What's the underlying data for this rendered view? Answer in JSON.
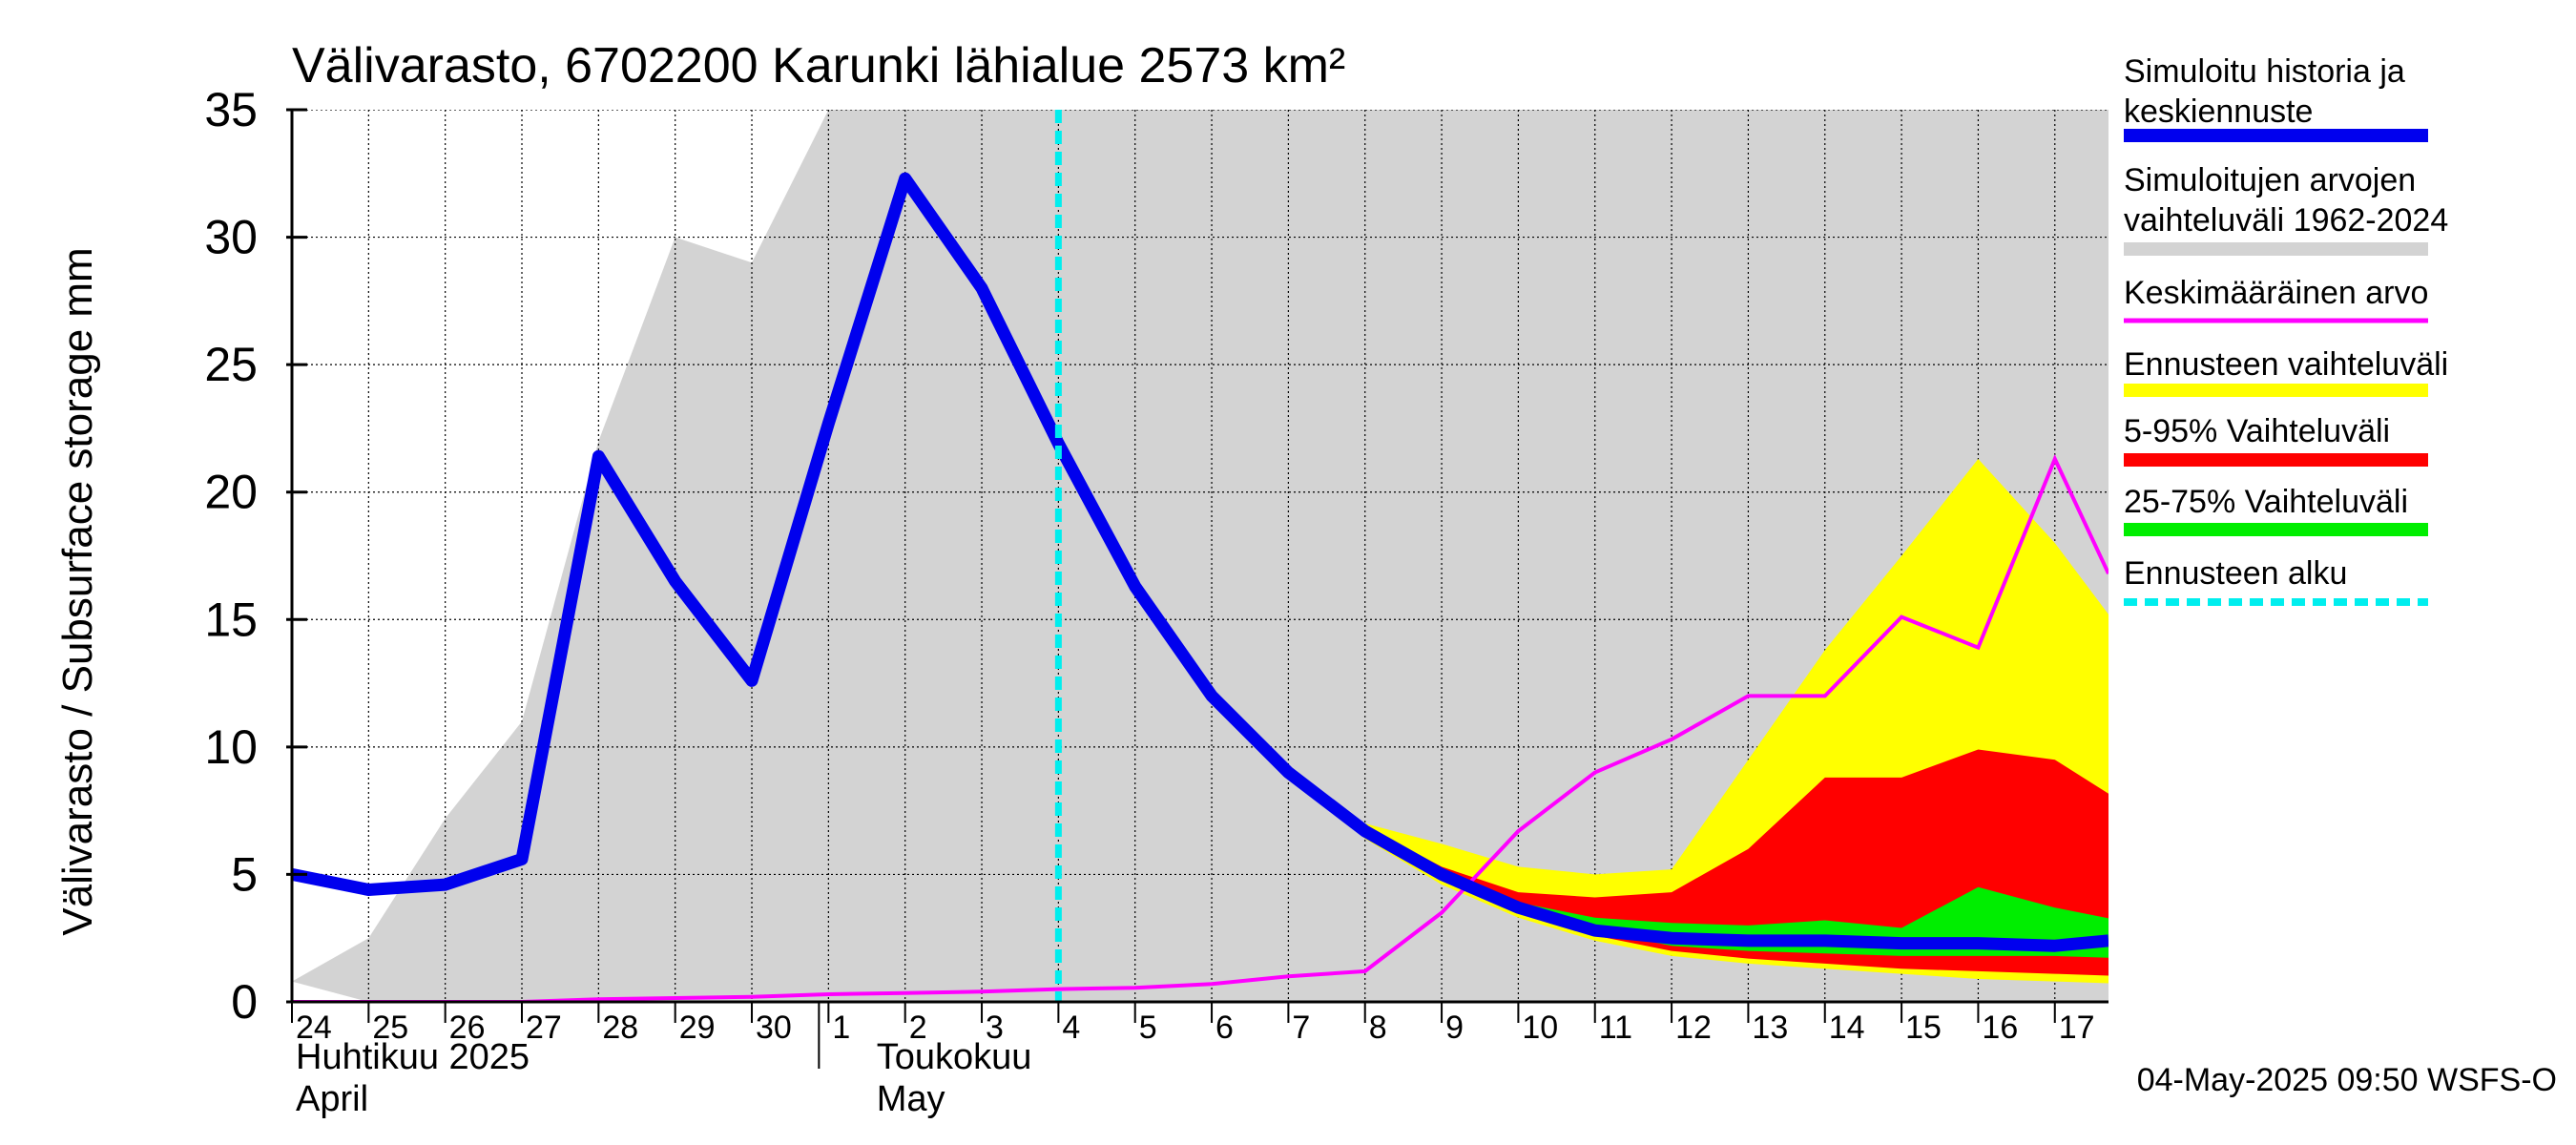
{
  "title": "Välivarasto, 6702200 Karunki lähialue 2573 km²",
  "timestamp": "04-May-2025 09:50 WSFS-O",
  "colors": {
    "history": "#0000ee",
    "range": "#d3d3d3",
    "mean": "#ff00ff",
    "forecast_range": "#ffff00",
    "p5_95": "#ff0000",
    "p25_75": "#00ee00",
    "forecast_start": "#00eeee"
  },
  "chart_data": {
    "type": "area",
    "title": "Välivarasto, 6702200 Karunki lähialue 2573 km²",
    "ylabel": "Välivarasto / Subsurface storage  mm",
    "ylim": [
      0,
      35
    ],
    "yticks": [
      0,
      5,
      10,
      15,
      20,
      25,
      30,
      35
    ],
    "xlim": [
      "2025-04-24",
      "2025-05-17T16:00"
    ],
    "grid": true,
    "legend_position": "right",
    "x_tick_labels": [
      "24",
      "25",
      "26",
      "27",
      "28",
      "29",
      "30",
      "1",
      "2",
      "3",
      "4",
      "5",
      "6",
      "7",
      "8",
      "9",
      "10",
      "11",
      "12",
      "13",
      "14",
      "15",
      "16",
      "17"
    ],
    "month_labels": [
      {
        "line1": "Huhtikuu  2025",
        "line2": "April"
      },
      {
        "line1": "Toukokuu",
        "line2": "May"
      }
    ],
    "forecast_start": "2025-05-04",
    "legend": [
      "Simuloitu historia ja keskiennuste",
      "Simuloitujen arvojen vaihteluväli 1962-2024",
      "Keskimääräinen arvo",
      "Ennusteen vaihteluväli",
      "5-95% Vaihteluväli",
      "25-75% Vaihteluväli",
      "Ennusteen alku"
    ],
    "x_days": [
      0,
      1,
      2,
      3,
      4,
      5,
      6,
      7,
      8,
      9,
      10,
      11,
      12,
      13,
      14,
      15,
      16,
      17,
      18,
      19,
      20,
      21,
      22,
      23,
      23.7
    ],
    "series": [
      {
        "name": "Simuloitu historia ja keskiennuste",
        "values": [
          5.0,
          4.4,
          4.6,
          5.6,
          21.4,
          16.5,
          12.6,
          22.7,
          32.3,
          28.0,
          21.9,
          16.3,
          12.0,
          9.0,
          6.7,
          5.0,
          3.7,
          2.8,
          2.5,
          2.4,
          2.4,
          2.3,
          2.3,
          2.2,
          2.4
        ]
      },
      {
        "name": "Keskimääräinen arvo",
        "values": [
          0.0,
          0.0,
          0.0,
          0.0,
          0.1,
          0.15,
          0.2,
          0.3,
          0.35,
          0.4,
          0.5,
          0.55,
          0.7,
          1.0,
          1.2,
          3.5,
          6.7,
          9.0,
          10.3,
          12.0,
          12.0,
          15.1,
          13.9,
          21.3,
          16.8
        ]
      },
      {
        "name": "Simuloitujen arvojen vaihteluväli 1962-2024",
        "lower": [
          0.8,
          0.0,
          0.0,
          0.0,
          0.0,
          0.0,
          0.0,
          0.0,
          0.0,
          0.0,
          0.0,
          0.0,
          0.0,
          0.0,
          0.0,
          0.0,
          0.0,
          0.0,
          0.0,
          0.0,
          0.0,
          0.0,
          0.0,
          0.0,
          0.0
        ],
        "upper": [
          0.8,
          2.5,
          7.2,
          11.0,
          22.0,
          30.0,
          29.0,
          35.0,
          35.0,
          35.0,
          35.0,
          35.0,
          35.0,
          35.0,
          35.0,
          35.0,
          35.0,
          35.0,
          35.0,
          35.0,
          35.0,
          35.0,
          35.0,
          35.0,
          35.0
        ]
      },
      {
        "name": "Ennusteen vaihteluväli",
        "x_start": 10,
        "lower": [
          21.9,
          16.3,
          12.0,
          8.9,
          6.4,
          4.6,
          3.3,
          2.4,
          1.8,
          1.5,
          1.3,
          1.1,
          0.9,
          0.8,
          0.7
        ],
        "upper": [
          21.9,
          16.3,
          12.0,
          9.1,
          7.0,
          6.2,
          5.3,
          5.0,
          5.2,
          9.5,
          13.8,
          17.5,
          21.3,
          18.0,
          14.0
        ]
      },
      {
        "name": "5-95% Vaihteluväli",
        "x_start": 10,
        "lower": [
          21.9,
          16.3,
          12.0,
          8.9,
          6.5,
          4.8,
          3.5,
          2.6,
          2.0,
          1.7,
          1.5,
          1.3,
          1.2,
          1.1,
          1.0
        ],
        "upper": [
          21.9,
          16.3,
          12.0,
          9.0,
          6.9,
          5.3,
          4.3,
          4.1,
          4.3,
          6.0,
          8.8,
          8.8,
          9.9,
          9.5,
          7.6
        ]
      },
      {
        "name": "25-75% Vaihteluväli",
        "x_start": 10,
        "lower": [
          21.9,
          16.3,
          12.0,
          8.9,
          6.6,
          4.9,
          3.6,
          2.8,
          2.2,
          2.0,
          1.9,
          1.8,
          1.8,
          1.8,
          1.7
        ],
        "upper": [
          21.9,
          16.3,
          12.0,
          9.0,
          6.8,
          5.1,
          3.9,
          3.3,
          3.1,
          3.0,
          3.2,
          2.9,
          4.5,
          3.7,
          3.1
        ]
      }
    ]
  }
}
